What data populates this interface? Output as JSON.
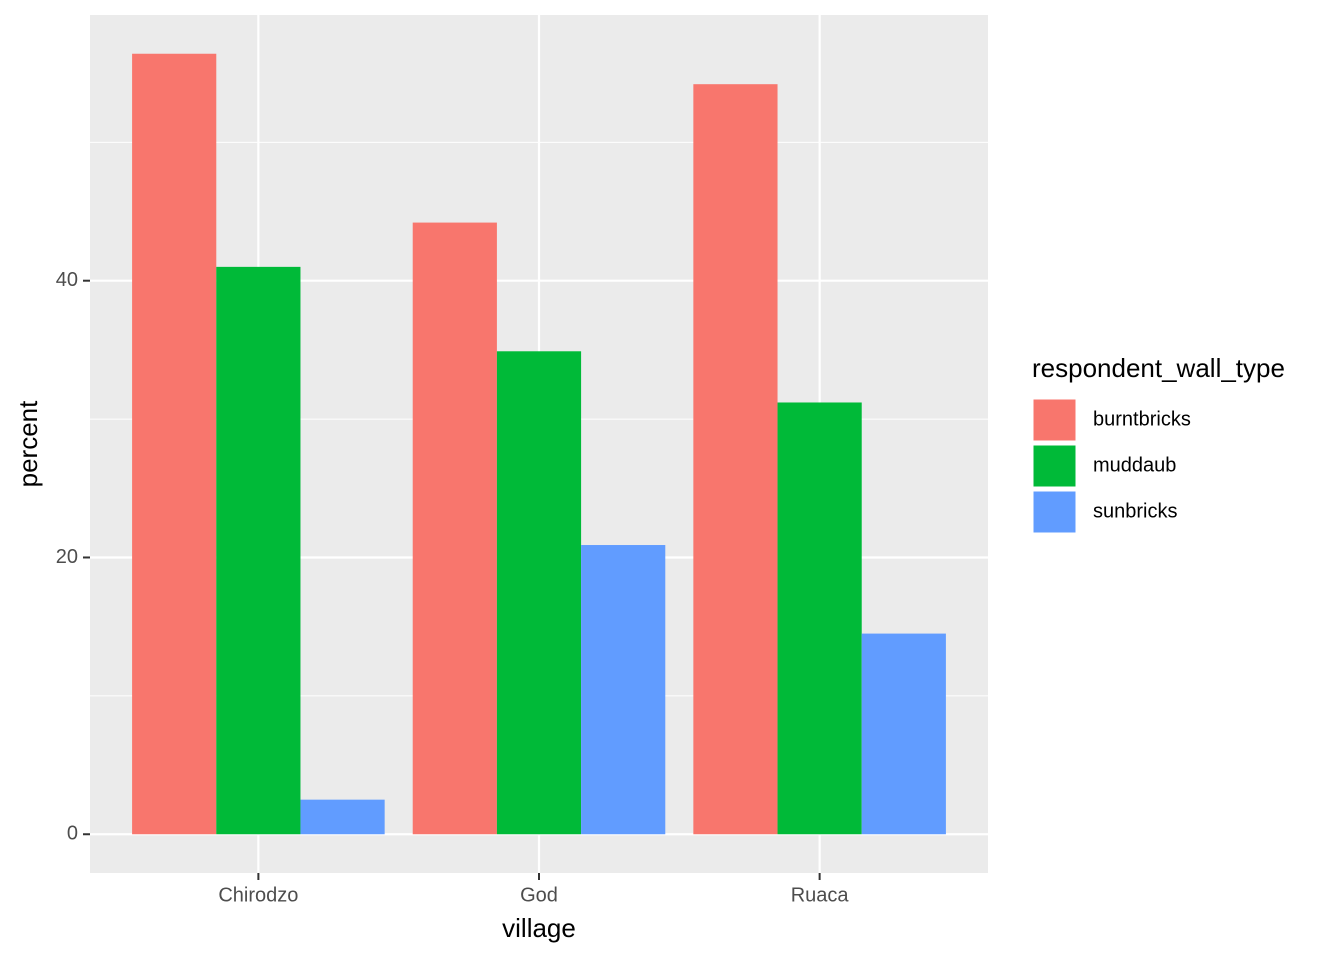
{
  "chart_data": {
    "type": "bar",
    "x_label": "village",
    "y_label": "percent",
    "categories": [
      "Chirodzo",
      "God",
      "Ruaca"
    ],
    "legend_title": "respondent_wall_type",
    "series": [
      {
        "name": "burntbricks",
        "color": "#F8766D",
        "values": [
          56.4,
          44.2,
          54.2
        ]
      },
      {
        "name": "muddaub",
        "color": "#00BA38",
        "values": [
          41.0,
          34.9,
          31.2
        ]
      },
      {
        "name": "sunbricks",
        "color": "#619CFF",
        "values": [
          2.5,
          20.9,
          14.5
        ]
      }
    ],
    "ylim": [
      -2.8,
      59.2
    ],
    "yticks": [
      0,
      20,
      40
    ],
    "minor_yticks": [
      10,
      30,
      50
    ],
    "grid": true,
    "legend": "right"
  }
}
